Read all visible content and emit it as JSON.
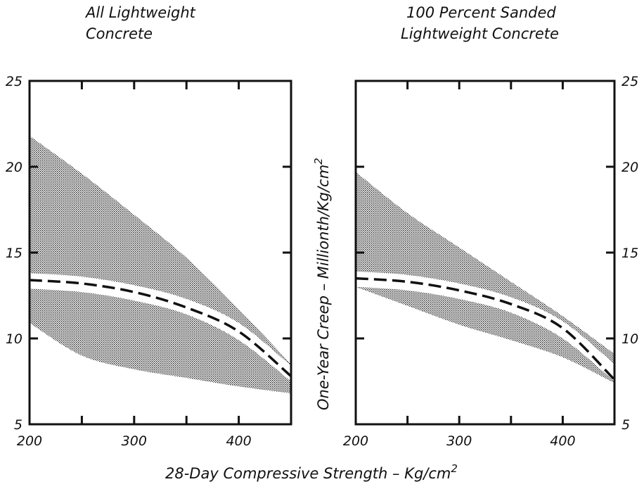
{
  "xlabel": "28-Day Compressive Strength – Kg/cm",
  "xlabel_sup": "2",
  "ylabel": "One-Year Creep – Millionth/Kg/cm",
  "ylabel_sup": "2",
  "chart_data": [
    {
      "type": "area",
      "title_lines": [
        "All Lightweight",
        "Concrete"
      ],
      "xlim": [
        200,
        450
      ],
      "ylim": [
        5,
        25
      ],
      "xticks": [
        200,
        300,
        400
      ],
      "yticks": [
        5,
        10,
        15,
        20,
        25
      ],
      "ytick_side": "left",
      "grid": false,
      "band_upper": {
        "x": [
          200,
          250,
          300,
          350,
          400,
          450
        ],
        "values": [
          21.8,
          19.6,
          17.2,
          14.7,
          11.7,
          8.5
        ]
      },
      "band_inner_upper": {
        "x": [
          200,
          250,
          300,
          350,
          400,
          450
        ],
        "values": [
          13.8,
          13.6,
          13.1,
          12.3,
          10.9,
          8.4
        ]
      },
      "band_inner_lower": {
        "x": [
          200,
          250,
          300,
          350,
          400,
          450
        ],
        "values": [
          12.9,
          12.7,
          12.2,
          11.4,
          9.9,
          7.5
        ]
      },
      "band_lower": {
        "x": [
          200,
          250,
          300,
          350,
          400,
          450
        ],
        "values": [
          10.9,
          9.0,
          8.2,
          7.7,
          7.2,
          6.8
        ]
      },
      "mean_line": {
        "x": [
          200,
          250,
          300,
          350,
          400,
          450
        ],
        "values": [
          13.4,
          13.2,
          12.7,
          11.8,
          10.4,
          7.8
        ]
      }
    },
    {
      "type": "area",
      "title_lines": [
        "100 Percent Sanded",
        "Lightweight Concrete"
      ],
      "xlim": [
        200,
        450
      ],
      "ylim": [
        5,
        25
      ],
      "xticks": [
        200,
        300,
        400
      ],
      "yticks": [
        5,
        10,
        15,
        20,
        25
      ],
      "ytick_side": "right",
      "grid": false,
      "band_upper": {
        "x": [
          200,
          250,
          300,
          350,
          400,
          450
        ],
        "values": [
          19.7,
          17.3,
          15.3,
          13.3,
          11.3,
          9.1
        ]
      },
      "band_inner_upper": {
        "x": [
          200,
          250,
          300,
          350,
          400,
          450
        ],
        "values": [
          13.9,
          13.7,
          13.2,
          12.4,
          11.0,
          8.5
        ]
      },
      "band_inner_lower": {
        "x": [
          200,
          250,
          300,
          350,
          400,
          450
        ],
        "values": [
          13.0,
          12.8,
          12.3,
          11.5,
          10.0,
          7.5
        ]
      },
      "band_lower": {
        "x": [
          200,
          250,
          300,
          350,
          400,
          450
        ],
        "values": [
          13.0,
          11.9,
          10.8,
          9.9,
          8.9,
          7.4
        ]
      },
      "mean_line": {
        "x": [
          200,
          250,
          300,
          350,
          400,
          450
        ],
        "values": [
          13.5,
          13.3,
          12.8,
          12.0,
          10.6,
          7.6
        ]
      }
    }
  ]
}
